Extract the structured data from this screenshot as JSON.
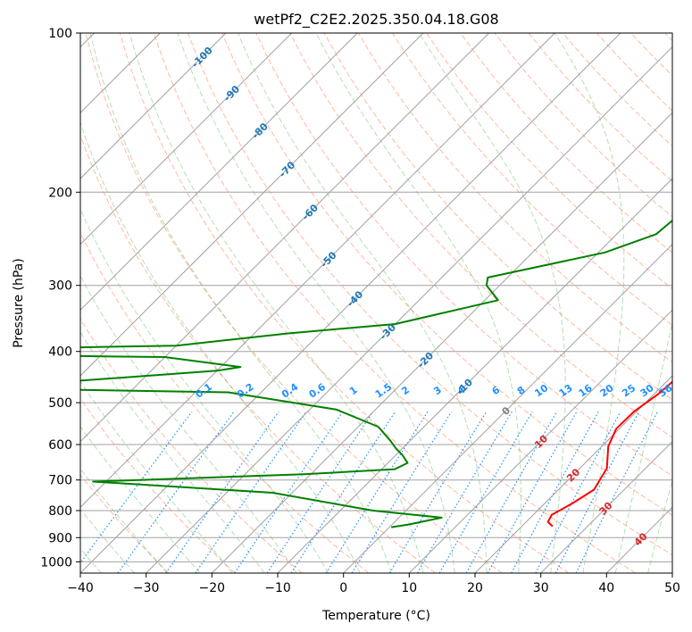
{
  "chart_data": {
    "type": "line",
    "title": "wetPf2_C2E2.2025.350.04.18.G08",
    "xlabel": "Temperature (°C)",
    "ylabel": "Pressure (hPa)",
    "xlim": [
      -40,
      50
    ],
    "ylim": [
      1050,
      100
    ],
    "x_ticks": [
      -40,
      -30,
      -20,
      -10,
      0,
      10,
      20,
      30,
      40,
      50
    ],
    "x_tick_labels": [
      "−40",
      "−30",
      "−20",
      "−10",
      "0",
      "10",
      "20",
      "30",
      "40",
      "50"
    ],
    "y_ticks": [
      100,
      200,
      300,
      400,
      500,
      600,
      700,
      800,
      900,
      1000
    ],
    "y_tick_labels": [
      "100",
      "200",
      "300",
      "400",
      "500",
      "600",
      "700",
      "800",
      "900",
      "1000"
    ],
    "skew": 1.0,
    "colors": {
      "temperature": "#ff0000",
      "dewpoint": "#008000",
      "dry_adiabat": "#ff7f50",
      "moist_adiabat": "#2ca02c",
      "mixing_ratio": "#1f77b4",
      "isotherm_label": "#1f77b4",
      "isotherm_label_warm": "#d62728",
      "isotherm_label_zero": "#7f7f7f",
      "mixing_label": "#1e90ff",
      "grid": "#a0a0a0"
    },
    "series": [
      {
        "name": "Temperature",
        "color": "#ff0000",
        "points": [
          [
            24.7,
            857
          ],
          [
            23.3,
            840
          ],
          [
            22.8,
            815
          ],
          [
            24.2,
            775
          ],
          [
            25.4,
            730
          ],
          [
            24.1,
            665
          ],
          [
            21.0,
            605
          ],
          [
            19.5,
            560
          ],
          [
            19.6,
            520
          ],
          [
            20.6,
            482
          ],
          [
            21.0,
            450
          ],
          [
            20.4,
            420
          ],
          [
            18.5,
            385
          ],
          [
            15.5,
            350
          ],
          [
            12.0,
            315
          ],
          [
            8.6,
            280
          ],
          [
            5.8,
            250
          ],
          [
            3.6,
            225
          ],
          [
            1.8,
            205
          ],
          [
            0.2,
            185
          ],
          [
            0.2,
            170
          ],
          [
            0.5,
            155
          ],
          [
            -0.3,
            145
          ],
          [
            -0.9,
            135
          ],
          [
            -1.5,
            125
          ],
          [
            -2.2,
            115
          ],
          [
            -2.6,
            107
          ],
          [
            -2.6,
            100
          ]
        ]
      },
      {
        "name": "Dewpoint",
        "color": "#008000",
        "points": [
          [
            0.3,
            860
          ],
          [
            2.5,
            850
          ],
          [
            6.5,
            825
          ],
          [
            -5.0,
            800
          ],
          [
            -23.0,
            740
          ],
          [
            -52.0,
            705
          ],
          [
            -21.0,
            683
          ],
          [
            -8.0,
            668
          ],
          [
            -7.0,
            650
          ],
          [
            -9.0,
            628
          ],
          [
            -11.0,
            610
          ],
          [
            -13.0,
            590
          ],
          [
            -17.0,
            555
          ],
          [
            -26.0,
            515
          ],
          [
            -45.0,
            478
          ],
          [
            -80.0,
            470
          ],
          [
            -70.0,
            455
          ],
          [
            -50.0,
            435
          ],
          [
            -47.0,
            428
          ],
          [
            -60.0,
            410
          ],
          [
            -120.0,
            402
          ],
          [
            -60.0,
            390
          ],
          [
            -45.0,
            370
          ],
          [
            -30.0,
            355
          ],
          [
            -25.0,
            340
          ],
          [
            -18.0,
            320
          ],
          [
            -22.0,
            300
          ],
          [
            -23.0,
            290
          ],
          [
            -9.0,
            260
          ],
          [
            -4.0,
            240
          ],
          [
            -3.5,
            222
          ],
          [
            -1.5,
            205
          ],
          [
            -1.5,
            185
          ],
          [
            -4.5,
            170
          ],
          [
            -5.0,
            155
          ],
          [
            -3.0,
            140
          ],
          [
            -3.5,
            130
          ],
          [
            -3.0,
            120
          ],
          [
            -3.5,
            110
          ],
          [
            -3.5,
            100
          ]
        ]
      }
    ],
    "isotherm_labels": [
      {
        "text": "-100",
        "t": -100,
        "p": 111
      },
      {
        "text": "-90",
        "t": -90,
        "p": 130
      },
      {
        "text": "-80",
        "t": -80,
        "p": 153
      },
      {
        "text": "-70",
        "t": -70,
        "p": 181
      },
      {
        "text": "-60",
        "t": -60,
        "p": 218
      },
      {
        "text": "-50",
        "t": -50,
        "p": 268
      },
      {
        "text": "-40",
        "t": -40,
        "p": 318
      },
      {
        "text": "-30",
        "t": -30,
        "p": 367
      },
      {
        "text": "-20",
        "t": -20,
        "p": 415
      },
      {
        "text": "-10",
        "t": -10,
        "p": 466
      },
      {
        "text": "0",
        "t": 0,
        "p": 518
      },
      {
        "text": "10",
        "t": 10,
        "p": 592
      },
      {
        "text": "20",
        "t": 20,
        "p": 685
      },
      {
        "text": "30",
        "t": 30,
        "p": 792
      },
      {
        "text": "40",
        "t": 40,
        "p": 906
      }
    ],
    "mixing_ratio_labels": [
      "0.1",
      "0.2",
      "0.4",
      "0.6",
      "1",
      "1.5",
      "2",
      "3",
      "4",
      "6",
      "8",
      "10",
      "13",
      "16",
      "20",
      "25",
      "30",
      "36"
    ],
    "mixing_ratio_label_pressure": 480,
    "mixing_ratio_top_pressure": 520
  }
}
